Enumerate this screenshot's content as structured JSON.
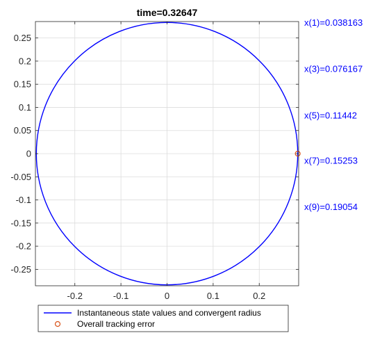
{
  "chart_data": {
    "type": "line",
    "title": "time=0.32647",
    "xlabel": "",
    "ylabel": "",
    "xlim": [
      -0.2855,
      0.2855
    ],
    "ylim": [
      -0.2855,
      0.2855
    ],
    "xticks": [
      -0.2,
      -0.1,
      0,
      0.1,
      0.2
    ],
    "xtick_labels": [
      "-0.2",
      "-0.1",
      "0",
      "0.1",
      "0.2"
    ],
    "yticks": [
      0.25,
      0.2,
      0.15,
      0.1,
      0.05,
      0,
      -0.05,
      -0.1,
      -0.15,
      -0.2,
      -0.25
    ],
    "ytick_labels": [
      "0.25",
      "0.2",
      "0.15",
      "0.1",
      "0.05",
      "0",
      "-0.05",
      "-0.1",
      "-0.15",
      "-0.2",
      "-0.25"
    ],
    "grid": true,
    "legend_position": "bottom",
    "series": [
      {
        "name": "Instantaneous state values and convergent radius",
        "kind": "circle",
        "center": [
          0,
          0
        ],
        "radius": 0.2835,
        "color": "#0000ff"
      },
      {
        "name": "Overall tracking error",
        "kind": "marker",
        "marker": "circle",
        "x": [
          0.2835
        ],
        "y": [
          0
        ],
        "color": "#d95319"
      }
    ],
    "annotations": [
      {
        "text": "x(1)=0.038163",
        "y": 0.2835,
        "color": "#0000ff"
      },
      {
        "text": "x(3)=0.076167",
        "y": 0.1832,
        "color": "#0000ff"
      },
      {
        "text": "x(5)=0.11442",
        "y": 0.0827,
        "color": "#0000ff"
      },
      {
        "text": "x(7)=0.15253",
        "y": -0.0147,
        "color": "#0000ff"
      },
      {
        "text": "x(9)=0.19054",
        "y": -0.1153,
        "color": "#0000ff"
      }
    ]
  }
}
